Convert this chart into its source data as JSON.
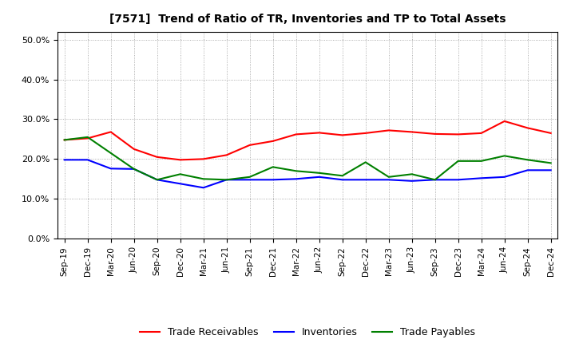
{
  "title": "[7571]  Trend of Ratio of TR, Inventories and TP to Total Assets",
  "x_labels": [
    "Sep-19",
    "Dec-19",
    "Mar-20",
    "Jun-20",
    "Sep-20",
    "Dec-20",
    "Mar-21",
    "Jun-21",
    "Sep-21",
    "Dec-21",
    "Mar-22",
    "Jun-22",
    "Sep-22",
    "Dec-22",
    "Mar-23",
    "Jun-23",
    "Sep-23",
    "Dec-23",
    "Mar-24",
    "Jun-24",
    "Sep-24",
    "Dec-24"
  ],
  "trade_receivables": [
    0.248,
    0.252,
    0.268,
    0.225,
    0.205,
    0.198,
    0.2,
    0.21,
    0.235,
    0.245,
    0.262,
    0.266,
    0.26,
    0.265,
    0.272,
    0.268,
    0.263,
    0.262,
    0.265,
    0.295,
    0.278,
    0.265
  ],
  "inventories": [
    0.198,
    0.198,
    0.176,
    0.175,
    0.148,
    0.138,
    0.128,
    0.148,
    0.148,
    0.148,
    0.15,
    0.155,
    0.148,
    0.148,
    0.148,
    0.145,
    0.148,
    0.148,
    0.152,
    0.155,
    0.172,
    0.172
  ],
  "trade_payables": [
    0.248,
    0.255,
    0.215,
    0.175,
    0.148,
    0.162,
    0.15,
    0.148,
    0.155,
    0.18,
    0.17,
    0.165,
    0.158,
    0.192,
    0.155,
    0.162,
    0.148,
    0.195,
    0.195,
    0.208,
    0.198,
    0.19
  ],
  "tr_color": "#ff0000",
  "inv_color": "#0000ff",
  "tp_color": "#008000",
  "ylim": [
    0.0,
    0.52
  ],
  "yticks": [
    0.0,
    0.1,
    0.2,
    0.3,
    0.4,
    0.5
  ],
  "bg_color": "#ffffff",
  "grid_color": "#999999",
  "legend_labels": [
    "Trade Receivables",
    "Inventories",
    "Trade Payables"
  ]
}
